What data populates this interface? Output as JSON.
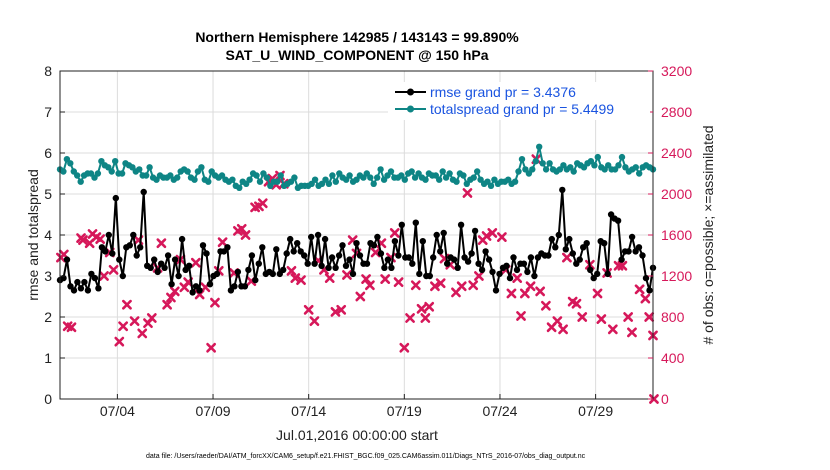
{
  "chart_data": {
    "type": "line",
    "title_line1": "Northern Hemisphere 142985 / 143143 = 99.890%",
    "title_line2": "SAT_U_WIND_COMPONENT @ 150 hPa",
    "xlabel": "Jul.01,2016 00:00:00 start",
    "ylabel_left": "rmse and totalspread",
    "ylabel_right": "# of obs: o=possible; ×=assimilated",
    "footnote": "data file: /Users/raeder/DAI/ATM_forcXX/CAM6_setup/f.e21.FHIST_BGC.f09_025.CAM6assim.011/Diags_NTrS_2016-07/obs_diag_output.nc",
    "xlim": [
      1.0,
      32.0
    ],
    "xtick_values": [
      4,
      9,
      14,
      19,
      24,
      29
    ],
    "xtick_labels": [
      "07/04",
      "07/09",
      "07/14",
      "07/19",
      "07/24",
      "07/29"
    ],
    "ylim_left": [
      0,
      8
    ],
    "yticks_left": [
      "0",
      "1",
      "2",
      "3",
      "4",
      "5",
      "6",
      "7",
      "8"
    ],
    "ylim_right": [
      0,
      3200
    ],
    "yticks_right": [
      "0",
      "400",
      "800",
      "1200",
      "1600",
      "2000",
      "2400",
      "2800",
      "3200"
    ],
    "colors": {
      "rmse": "#000000",
      "spread": "#0e8585",
      "obs": "#d6185a",
      "legend_text": "#1a54e0"
    },
    "series": [
      {
        "name": "rmse grand pr = 3.4376",
        "key": "rmse",
        "marker": "circle",
        "values": [
          2.9,
          2.95,
          3.4,
          2.75,
          2.65,
          2.85,
          2.7,
          2.85,
          2.65,
          3.05,
          2.95,
          2.7,
          3.7,
          3.6,
          4.0,
          3.55,
          4.9,
          3.4,
          3.0,
          3.7,
          3.75,
          4.0,
          3.5,
          3.7,
          5.05,
          3.25,
          3.2,
          3.4,
          3.1,
          3.3,
          3.2,
          3.5,
          2.8,
          3.4,
          3.0,
          3.9,
          3.15,
          3.25,
          2.6,
          2.75,
          2.65,
          3.75,
          3.55,
          2.8,
          3.0,
          3.05,
          3.6,
          3.6,
          3.7,
          2.65,
          2.75,
          3.1,
          2.75,
          2.75,
          3.15,
          3.5,
          2.9,
          3.3,
          3.7,
          3.05,
          3.1,
          3.05,
          3.65,
          3.05,
          3.15,
          3.55,
          3.9,
          3.6,
          3.8,
          3.6,
          3.5,
          3.3,
          3.95,
          3.3,
          4.0,
          3.25,
          3.9,
          3.2,
          3.45,
          3.2,
          3.5,
          3.75,
          3.25,
          3.4,
          3.05,
          3.8,
          3.5,
          3.3,
          3.3,
          3.8,
          3.75,
          3.95,
          3.55,
          3.2,
          3.4,
          3.2,
          3.85,
          3.5,
          4.25,
          3.45,
          3.45,
          3.3,
          4.3,
          3.05,
          3.85,
          3.0,
          3.0,
          3.45,
          4.0,
          3.6,
          4.05,
          3.3,
          3.45,
          3.4,
          3.2,
          4.25,
          3.45,
          3.35,
          3.55,
          4.1,
          3.3,
          3.15,
          3.6,
          3.4,
          3.1,
          2.65,
          3.05,
          3.2,
          3.25,
          2.95,
          3.45,
          3.15,
          3.3,
          3.3,
          3.1,
          3.45,
          3.0,
          3.45,
          3.55,
          3.5,
          3.5,
          3.9,
          3.7,
          4.0,
          5.1,
          3.65,
          3.9,
          3.55,
          3.3,
          3.4,
          3.7,
          3.8,
          3.15,
          2.95,
          3.05,
          3.85,
          3.8,
          3.05,
          4.5,
          4.4,
          4.35,
          3.4,
          3.6,
          3.6,
          3.95,
          3.6,
          3.7,
          3.5,
          2.95,
          2.65,
          3.2
        ]
      },
      {
        "name": "totalspread grand pr = 5.4499",
        "key": "spread",
        "marker": "circle",
        "values": [
          5.6,
          5.55,
          5.85,
          5.75,
          5.55,
          5.45,
          5.3,
          5.45,
          5.5,
          5.5,
          5.4,
          5.5,
          5.8,
          5.7,
          5.65,
          5.55,
          5.8,
          5.5,
          5.5,
          5.75,
          5.7,
          5.65,
          5.55,
          5.6,
          5.45,
          5.45,
          5.65,
          5.4,
          5.35,
          5.45,
          5.4,
          5.4,
          5.45,
          5.35,
          5.4,
          5.55,
          5.6,
          5.55,
          5.4,
          5.35,
          5.55,
          5.65,
          5.35,
          5.3,
          5.55,
          5.45,
          5.4,
          5.45,
          5.35,
          5.3,
          5.35,
          5.2,
          5.15,
          5.3,
          5.25,
          5.35,
          5.5,
          5.45,
          5.3,
          5.5,
          5.4,
          5.2,
          5.3,
          5.3,
          5.45,
          5.2,
          5.25,
          5.3,
          5.4,
          5.15,
          5.2,
          5.2,
          5.2,
          5.25,
          5.35,
          5.2,
          5.25,
          5.35,
          5.25,
          5.45,
          5.3,
          5.5,
          5.4,
          5.35,
          5.45,
          5.3,
          5.35,
          5.45,
          5.4,
          5.5,
          5.4,
          5.25,
          5.4,
          5.6,
          5.35,
          5.45,
          5.55,
          5.4,
          5.4,
          5.45,
          5.35,
          5.5,
          5.55,
          5.4,
          5.5,
          5.4,
          5.35,
          5.5,
          5.45,
          5.45,
          5.35,
          5.55,
          5.4,
          5.5,
          5.35,
          5.3,
          5.5,
          5.45,
          5.25,
          5.35,
          5.4,
          5.55,
          5.35,
          5.25,
          5.3,
          5.2,
          5.35,
          5.25,
          5.3,
          5.3,
          5.35,
          5.25,
          5.3,
          5.55,
          5.85,
          5.6,
          5.5,
          5.6,
          5.8,
          6.15,
          5.75,
          5.6,
          5.75,
          5.6,
          5.55,
          5.6,
          5.7,
          5.6,
          5.65,
          5.55,
          5.75,
          5.7,
          5.65,
          5.75,
          5.8,
          5.7,
          5.9,
          5.65,
          5.6,
          5.7,
          5.6,
          5.6,
          5.7,
          5.9,
          5.65,
          5.55,
          5.6,
          5.65,
          5.5,
          5.65,
          5.7,
          5.65,
          5.6
        ]
      },
      {
        "name": "obs assimilated",
        "key": "obs",
        "marker": "x",
        "axis": "right",
        "points": [
          [
            1.05,
            1380
          ],
          [
            1.2,
            1410
          ],
          [
            1.4,
            710
          ],
          [
            1.6,
            700
          ],
          [
            2.1,
            1570
          ],
          [
            2.2,
            1550
          ],
          [
            2.55,
            1520
          ],
          [
            2.7,
            1610
          ],
          [
            2.9,
            1580
          ],
          [
            3.1,
            1560
          ],
          [
            3.3,
            1200
          ],
          [
            3.6,
            1430
          ],
          [
            3.8,
            1260
          ],
          [
            4.1,
            560
          ],
          [
            4.3,
            710
          ],
          [
            4.5,
            920
          ],
          [
            4.9,
            760
          ],
          [
            5.1,
            1550
          ],
          [
            5.3,
            640
          ],
          [
            5.6,
            740
          ],
          [
            5.8,
            790
          ],
          [
            6.1,
            1280
          ],
          [
            6.3,
            1520
          ],
          [
            6.6,
            920
          ],
          [
            6.8,
            990
          ],
          [
            7.0,
            1050
          ],
          [
            7.3,
            1360
          ],
          [
            7.5,
            1090
          ],
          [
            7.7,
            1140
          ],
          [
            8.1,
            1330
          ],
          [
            8.3,
            1020
          ],
          [
            8.6,
            1090
          ],
          [
            8.9,
            500
          ],
          [
            9.1,
            940
          ],
          [
            9.3,
            1250
          ],
          [
            9.5,
            1530
          ],
          [
            10.1,
            1230
          ],
          [
            10.3,
            1640
          ],
          [
            10.5,
            1660
          ],
          [
            10.7,
            1600
          ],
          [
            11.0,
            1150
          ],
          [
            11.2,
            1870
          ],
          [
            11.4,
            1880
          ],
          [
            11.6,
            1910
          ],
          [
            11.9,
            2120
          ],
          [
            12.1,
            2150
          ],
          [
            12.3,
            2090
          ],
          [
            12.5,
            2180
          ],
          [
            12.7,
            2100
          ],
          [
            13.1,
            1250
          ],
          [
            13.3,
            1180
          ],
          [
            13.6,
            1160
          ],
          [
            14.0,
            870
          ],
          [
            14.3,
            760
          ],
          [
            14.5,
            1350
          ],
          [
            14.8,
            1260
          ],
          [
            15.1,
            1180
          ],
          [
            15.4,
            850
          ],
          [
            15.7,
            870
          ],
          [
            16.0,
            1210
          ],
          [
            16.3,
            1550
          ],
          [
            16.5,
            1420
          ],
          [
            16.7,
            1000
          ],
          [
            17.0,
            1170
          ],
          [
            17.2,
            1110
          ],
          [
            17.5,
            1430
          ],
          [
            17.8,
            1520
          ],
          [
            18.0,
            1170
          ],
          [
            18.3,
            1380
          ],
          [
            18.5,
            1620
          ],
          [
            18.7,
            1140
          ],
          [
            19.0,
            500
          ],
          [
            19.3,
            790
          ],
          [
            19.6,
            1110
          ],
          [
            19.9,
            880
          ],
          [
            20.1,
            790
          ],
          [
            20.3,
            900
          ],
          [
            20.6,
            1100
          ],
          [
            20.9,
            1130
          ],
          [
            21.1,
            1370
          ],
          [
            21.4,
            1310
          ],
          [
            21.7,
            1040
          ],
          [
            22.0,
            1100
          ],
          [
            22.3,
            2010
          ],
          [
            22.6,
            1110
          ],
          [
            22.9,
            1200
          ],
          [
            23.1,
            1550
          ],
          [
            23.3,
            1590
          ],
          [
            23.6,
            1620
          ],
          [
            24.1,
            1580
          ],
          [
            24.3,
            1260
          ],
          [
            24.6,
            1030
          ],
          [
            24.9,
            1180
          ],
          [
            25.1,
            810
          ],
          [
            25.3,
            1030
          ],
          [
            25.6,
            1100
          ],
          [
            25.9,
            2340
          ],
          [
            26.1,
            1050
          ],
          [
            26.4,
            910
          ],
          [
            26.7,
            700
          ],
          [
            27.0,
            760
          ],
          [
            27.3,
            680
          ],
          [
            27.5,
            1380
          ],
          [
            27.8,
            950
          ],
          [
            28.0,
            930
          ],
          [
            28.3,
            800
          ],
          [
            28.7,
            1310
          ],
          [
            29.1,
            1030
          ],
          [
            29.3,
            780
          ],
          [
            29.6,
            1230
          ],
          [
            29.9,
            680
          ],
          [
            30.2,
            1300
          ],
          [
            30.4,
            1300
          ],
          [
            30.7,
            800
          ],
          [
            30.9,
            650
          ],
          [
            31.3,
            1070
          ],
          [
            31.6,
            980
          ],
          [
            31.8,
            800
          ],
          [
            32.0,
            620
          ],
          [
            32.05,
            0
          ]
        ]
      }
    ],
    "legend_position": "top-right"
  }
}
